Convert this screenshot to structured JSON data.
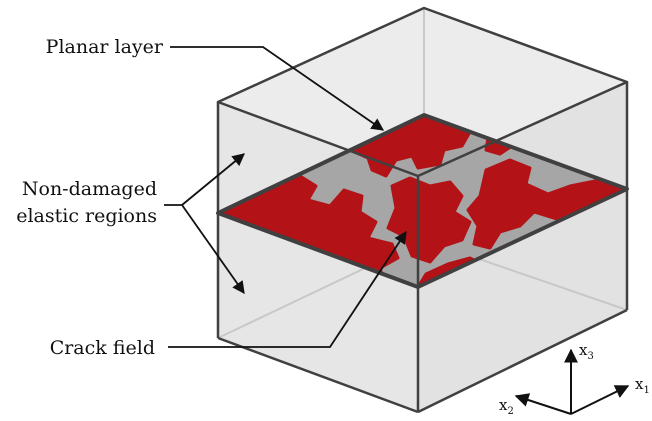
{
  "labels": {
    "planar_layer": "Planar layer",
    "non_damaged_line1": "Non-damaged",
    "non_damaged_line2": "elastic regions",
    "crack_field": "Crack field"
  },
  "axes": {
    "x1": {
      "base": "x",
      "sub": "1"
    },
    "x2": {
      "base": "x",
      "sub": "2"
    },
    "x3": {
      "base": "x",
      "sub": "3"
    }
  },
  "colors": {
    "crack": "#b31217",
    "undamaged_surface": "#a6a6a6",
    "box_face": "#e6e6e6",
    "box_edge": "#404040",
    "hidden_edge": "#c8c8c8"
  }
}
